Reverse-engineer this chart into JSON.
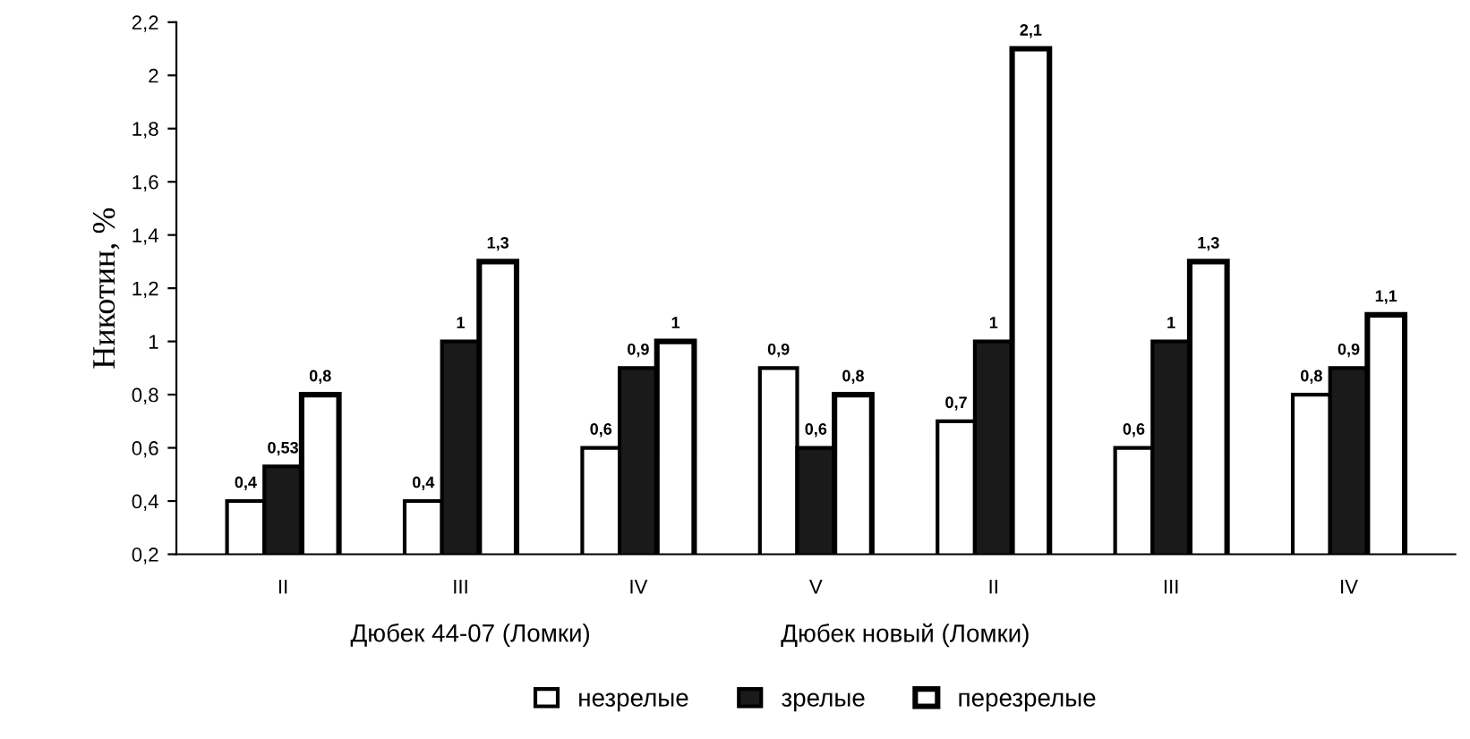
{
  "chart_data": {
    "type": "bar",
    "ylabel": "Никотин, %",
    "categories": [
      "II",
      "III",
      "IV",
      "V",
      "II",
      "III",
      "IV"
    ],
    "series": [
      {
        "name": "незрелые",
        "color": "#ffffff",
        "values": [
          0.4,
          0.4,
          0.6,
          0.9,
          0.7,
          0.6,
          0.8
        ],
        "value_labels": [
          "0,4",
          "0,4",
          "0,6",
          "0,9",
          "0,7",
          "0,6",
          "0,8"
        ]
      },
      {
        "name": "зрелые",
        "color": "#1a1a1a",
        "values": [
          0.53,
          1,
          0.9,
          0.6,
          1,
          1,
          0.9
        ],
        "value_labels": [
          "0,53",
          "1",
          "0,9",
          "0,6",
          "1",
          "1",
          "0,9"
        ]
      },
      {
        "name": "перезрелые",
        "color": "#ffffff",
        "values": [
          0.8,
          1.3,
          1,
          0.8,
          2.1,
          1.3,
          1.1
        ],
        "value_labels": [
          "0,8",
          "1,3",
          "1",
          "0,8",
          "2,1",
          "1,3",
          "1,1"
        ]
      }
    ],
    "ylim": [
      0.2,
      2.2
    ],
    "yticks": [
      {
        "value": 0.2,
        "label": "0,2"
      },
      {
        "value": 0.4,
        "label": "0,4"
      },
      {
        "value": 0.6,
        "label": "0,6"
      },
      {
        "value": 0.8,
        "label": "0,8"
      },
      1,
      {
        "value": 1.2,
        "label": "1,2"
      },
      {
        "value": 1.4,
        "label": "1,4"
      },
      {
        "value": 1.6,
        "label": "1,6"
      },
      {
        "value": 1.8,
        "label": "1,8"
      },
      2,
      {
        "value": 2.2,
        "label": "2,2"
      }
    ],
    "annotations": [
      "Дюбек 44-07 (Ломки)",
      "Дюбек новый (Ломки)"
    ],
    "legend": "bottom",
    "grid": false
  }
}
